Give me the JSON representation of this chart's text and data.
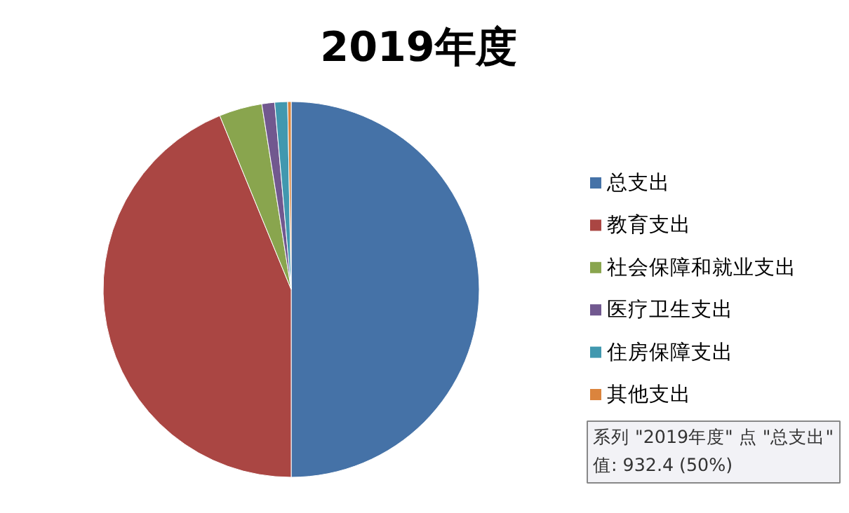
{
  "chart_data": {
    "type": "pie",
    "title": "2019年度",
    "categories": [
      "总支出",
      "教育支出",
      "社会保障和就业支出",
      "医疗卫生支出",
      "住房保障支出",
      "其他支出"
    ],
    "values": [
      50,
      43.8,
      3.7,
      1.1,
      1.1,
      0.3
    ],
    "colors": [
      "#4572a7",
      "#aa4643",
      "#89a54e",
      "#71588f",
      "#4198af",
      "#db843d"
    ],
    "legend": "right",
    "annotations": [
      "系列 \"2019年度\" 点 \"总支出\"",
      "值: 932.4 (50%)"
    ]
  }
}
